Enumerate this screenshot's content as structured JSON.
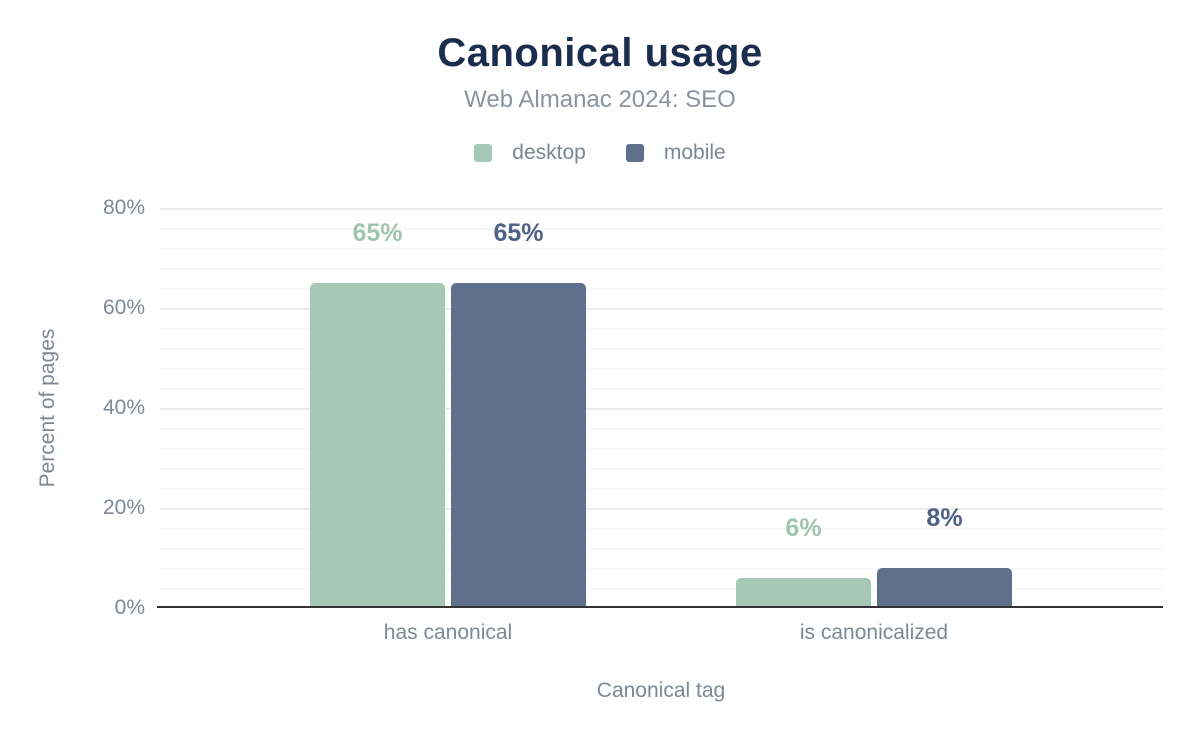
{
  "chart_data": {
    "type": "bar",
    "title": "Canonical usage",
    "subtitle": "Web Almanac 2024: SEO",
    "xlabel": "Canonical tag",
    "ylabel": "Percent of pages",
    "categories": [
      "has canonical",
      "is canonicalized"
    ],
    "series": [
      {
        "name": "desktop",
        "color": "#a6c9b7",
        "label_color": "#9fc5b1",
        "values": [
          65,
          6
        ],
        "value_labels": [
          "65%",
          "6%"
        ]
      },
      {
        "name": "mobile",
        "color": "#5e708c",
        "label_color": "#4e6186",
        "values": [
          65,
          8
        ],
        "value_labels": [
          "65%",
          "8%"
        ]
      }
    ],
    "ylim": [
      0,
      80
    ],
    "yticks": [
      {
        "value": 0,
        "label": "0%"
      },
      {
        "value": 20,
        "label": "20%"
      },
      {
        "value": 40,
        "label": "40%"
      },
      {
        "value": 60,
        "label": "60%"
      },
      {
        "value": 80,
        "label": "80%"
      }
    ],
    "minor_gridline_step": 4,
    "grid": true,
    "legend_position": "top"
  }
}
